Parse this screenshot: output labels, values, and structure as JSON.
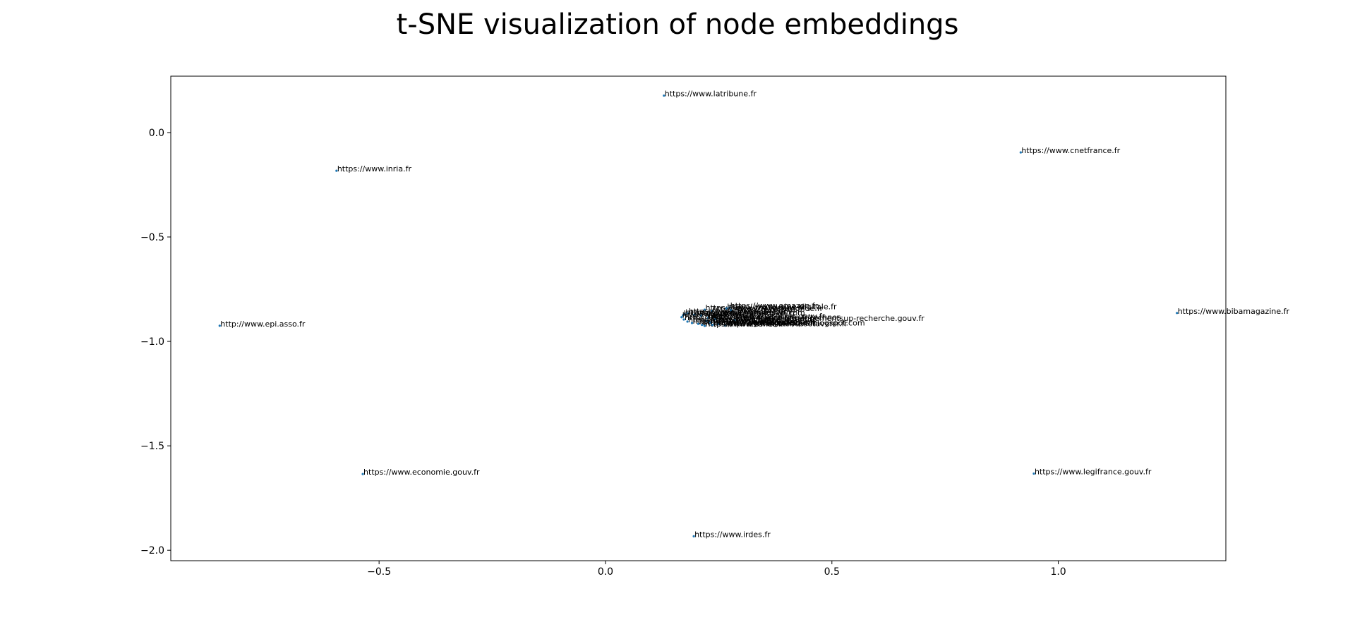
{
  "chart_data": {
    "type": "scatter",
    "title": "t-SNE visualization of node embeddings",
    "xlabel": "",
    "ylabel": "",
    "xlim": [
      -0.96,
      1.37
    ],
    "ylim": [
      -2.05,
      0.27
    ],
    "xticks": [
      -0.5,
      0.0,
      0.5,
      1.0
    ],
    "xtick_labels": [
      "−0.5",
      "0.0",
      "0.5",
      "1.0"
    ],
    "yticks": [
      0.0,
      -0.5,
      -1.0,
      -1.5,
      -2.0
    ],
    "ytick_labels": [
      "0.0",
      "−0.5",
      "−1.0",
      "−1.5",
      "−2.0"
    ],
    "grid": false,
    "marker_color": "#1f77b4",
    "points": [
      {
        "x": 0.129,
        "y": 0.177,
        "label": "https://www.latribune.fr"
      },
      {
        "x": -0.594,
        "y": -0.183,
        "label": "https://www.inria.fr"
      },
      {
        "x": 0.917,
        "y": -0.095,
        "label": "https://www.cnetfrance.fr"
      },
      {
        "x": -0.852,
        "y": -0.925,
        "label": "http://www.epi.asso.fr"
      },
      {
        "x": 1.262,
        "y": -0.864,
        "label": "https://www.bibamagazine.fr"
      },
      {
        "x": -0.536,
        "y": -1.635,
        "label": "https://www.economie.gouv.fr"
      },
      {
        "x": 0.946,
        "y": -1.633,
        "label": "https://www.legifrance.gouv.fr"
      },
      {
        "x": 0.195,
        "y": -1.933,
        "label": "https://www.irdes.fr"
      },
      {
        "x": 0.274,
        "y": -0.838,
        "label": "https://www.amazon.fr"
      },
      {
        "x": 0.219,
        "y": -0.848,
        "label": "https://www.challenges.fr"
      },
      {
        "x": 0.235,
        "y": -0.855,
        "label": "https://www.lesechos.fr"
      },
      {
        "x": 0.267,
        "y": -0.842,
        "label": "https://www.usine-digitale.fr"
      },
      {
        "x": 0.278,
        "y": -0.851,
        "label": "https://www.lemonde.fr"
      },
      {
        "x": 0.175,
        "y": -0.869,
        "label": "https://www.20minutes.fr"
      },
      {
        "x": 0.171,
        "y": -0.875,
        "label": "https://www.lefigaro.fr"
      },
      {
        "x": 0.182,
        "y": -0.865,
        "label": "https://www.france24.com"
      },
      {
        "x": 0.196,
        "y": -0.872,
        "label": "https://www.numerama.com"
      },
      {
        "x": 0.211,
        "y": -0.877,
        "label": "https://www.liberation.fr"
      },
      {
        "x": 0.226,
        "y": -0.888,
        "label": "https://www.education.gouv.fr"
      },
      {
        "x": 0.168,
        "y": -0.884,
        "label": "https://www.cnil.fr"
      },
      {
        "x": 0.173,
        "y": -0.895,
        "label": "https://www.ouest-france.fr"
      },
      {
        "x": 0.242,
        "y": -0.894,
        "label": "https://www.latribune.fr/technos"
      },
      {
        "x": 0.181,
        "y": -0.905,
        "label": "https://www.lepoint.fr"
      },
      {
        "x": 0.285,
        "y": -0.898,
        "label": "https://www.enseignementsup-recherche.gouv.fr"
      },
      {
        "x": 0.223,
        "y": -0.901,
        "label": "https://www.franceculture.fr"
      },
      {
        "x": 0.191,
        "y": -0.912,
        "label": "https://www.nouvelobs.com"
      },
      {
        "x": 0.205,
        "y": -0.916,
        "label": "https://www.journaldunet.com"
      },
      {
        "x": 0.231,
        "y": -0.909,
        "label": "https://www.arcep.fr"
      },
      {
        "x": 0.213,
        "y": -0.921,
        "label": "https://www.huffingtonpost.fr"
      },
      {
        "x": 0.248,
        "y": -0.918,
        "label": "https://www.ladepeche.fr"
      },
      {
        "x": 0.264,
        "y": -0.924,
        "label": "https://www.sciencesetavenir.fr"
      },
      {
        "x": 0.219,
        "y": -0.926,
        "label": "https://www.zdnet.fr"
      },
      {
        "x": 0.236,
        "y": -0.921,
        "label": "https://blog.informatique.blogspot.com"
      }
    ]
  }
}
